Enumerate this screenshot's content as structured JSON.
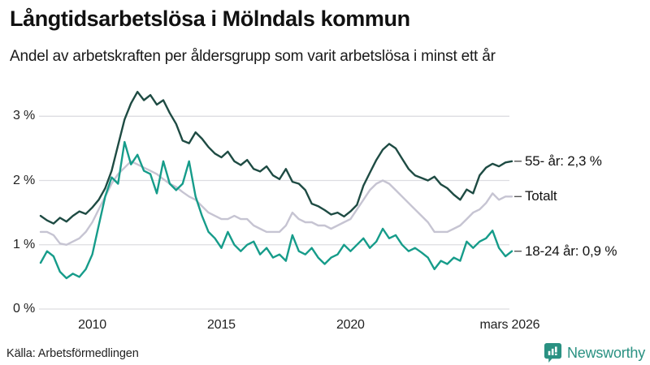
{
  "title": "Långtidsarbetslösa i Mölndals kommun",
  "subtitle": "Andel av arbetskraften per åldersgrupp som varit arbetslösa i minst ett år",
  "source": "Källa: Arbetsförmedlingen",
  "branding": {
    "name": "Newsworthy",
    "icon": "newsworthy-bar-chart-bubble-icon",
    "color": "#2A9182"
  },
  "colors": {
    "background": "#FFFFFF",
    "grid": "#DDDDE1",
    "axis_text": "#222222",
    "title_text": "#111111",
    "end_label_text": "#121212",
    "connector": "#555555"
  },
  "chart_data": {
    "type": "line",
    "title": "Långtidsarbetslösa i Mölndals kommun",
    "subtitle": "Andel av arbetskraften per åldersgrupp som varit arbetslösa i minst ett år",
    "xlabel": "",
    "ylabel": "",
    "x_unit": "year (quarterly points)",
    "y_unit": "percent of labour force",
    "x_start": 2008.0,
    "x_step": 0.25,
    "x_end": 2026.25,
    "xlim": [
      2008.0,
      2026.25
    ],
    "ylim": [
      0,
      3.55
    ],
    "grid": "horizontal",
    "legend_position": "right-of-line-ends",
    "y_ticks": [
      {
        "value": 0,
        "label": "0 %"
      },
      {
        "value": 1,
        "label": "1 %"
      },
      {
        "value": 2,
        "label": "2 %"
      },
      {
        "value": 3,
        "label": "3 %"
      }
    ],
    "x_ticks": [
      {
        "value": 2010,
        "label": "2010"
      },
      {
        "value": 2015,
        "label": "2015"
      },
      {
        "value": 2020,
        "label": "2020"
      },
      {
        "value": 2026.17,
        "label": "mars 2026"
      }
    ],
    "series": [
      {
        "name": "55- år",
        "slug": "55-ar",
        "end_label": "55- år: 2,3 %",
        "latest_value": 2.3,
        "color": "#1E4B43",
        "z": 1,
        "values": [
          1.45,
          1.38,
          1.33,
          1.42,
          1.36,
          1.45,
          1.52,
          1.48,
          1.58,
          1.7,
          1.88,
          2.15,
          2.55,
          2.95,
          3.2,
          3.38,
          3.25,
          3.33,
          3.18,
          3.25,
          3.05,
          2.88,
          2.62,
          2.58,
          2.75,
          2.65,
          2.52,
          2.42,
          2.36,
          2.45,
          2.3,
          2.24,
          2.32,
          2.18,
          2.14,
          2.22,
          2.08,
          2.02,
          2.18,
          1.98,
          1.95,
          1.85,
          1.64,
          1.6,
          1.54,
          1.47,
          1.5,
          1.44,
          1.52,
          1.62,
          1.92,
          2.12,
          2.32,
          2.48,
          2.57,
          2.5,
          2.34,
          2.18,
          2.08,
          2.04,
          2.0,
          2.06,
          1.94,
          1.88,
          1.78,
          1.7,
          1.86,
          1.8,
          2.08,
          2.2,
          2.26,
          2.22,
          2.28,
          2.3
        ]
      },
      {
        "name": "Totalt",
        "slug": "totalt",
        "end_label": "Totalt",
        "latest_value": 1.75,
        "color": "#C6C4D2",
        "z": 0,
        "values": [
          1.2,
          1.2,
          1.15,
          1.02,
          1.0,
          1.05,
          1.1,
          1.2,
          1.35,
          1.55,
          1.75,
          1.95,
          2.1,
          2.2,
          2.3,
          2.25,
          2.2,
          2.15,
          2.1,
          2.02,
          1.95,
          1.9,
          1.82,
          1.75,
          1.7,
          1.6,
          1.5,
          1.45,
          1.4,
          1.4,
          1.45,
          1.4,
          1.4,
          1.3,
          1.25,
          1.2,
          1.2,
          1.2,
          1.3,
          1.5,
          1.4,
          1.35,
          1.35,
          1.3,
          1.3,
          1.25,
          1.3,
          1.35,
          1.4,
          1.55,
          1.7,
          1.85,
          1.95,
          2.0,
          1.95,
          1.85,
          1.75,
          1.65,
          1.55,
          1.45,
          1.35,
          1.2,
          1.2,
          1.2,
          1.25,
          1.3,
          1.4,
          1.5,
          1.55,
          1.65,
          1.8,
          1.7,
          1.75,
          1.75
        ]
      },
      {
        "name": "18-24 år",
        "slug": "18-24-ar",
        "end_label": "18-24 år: 0,9 %",
        "latest_value": 0.9,
        "color": "#169C8A",
        "z": 2,
        "values": [
          0.72,
          0.9,
          0.82,
          0.58,
          0.48,
          0.55,
          0.5,
          0.62,
          0.85,
          1.3,
          1.75,
          2.05,
          1.95,
          2.6,
          2.25,
          2.4,
          2.15,
          2.1,
          1.8,
          2.3,
          1.95,
          1.85,
          1.95,
          2.3,
          1.75,
          1.45,
          1.2,
          1.1,
          0.95,
          1.2,
          1.0,
          0.9,
          1.0,
          1.05,
          0.85,
          0.95,
          0.8,
          0.85,
          0.75,
          1.15,
          0.9,
          0.85,
          0.95,
          0.8,
          0.7,
          0.8,
          0.85,
          1.0,
          0.9,
          1.0,
          1.1,
          0.95,
          1.05,
          1.25,
          1.1,
          1.15,
          1.0,
          0.9,
          0.95,
          0.88,
          0.8,
          0.62,
          0.75,
          0.7,
          0.8,
          0.75,
          1.05,
          0.95,
          1.05,
          1.1,
          1.22,
          0.95,
          0.82,
          0.9
        ]
      }
    ]
  }
}
